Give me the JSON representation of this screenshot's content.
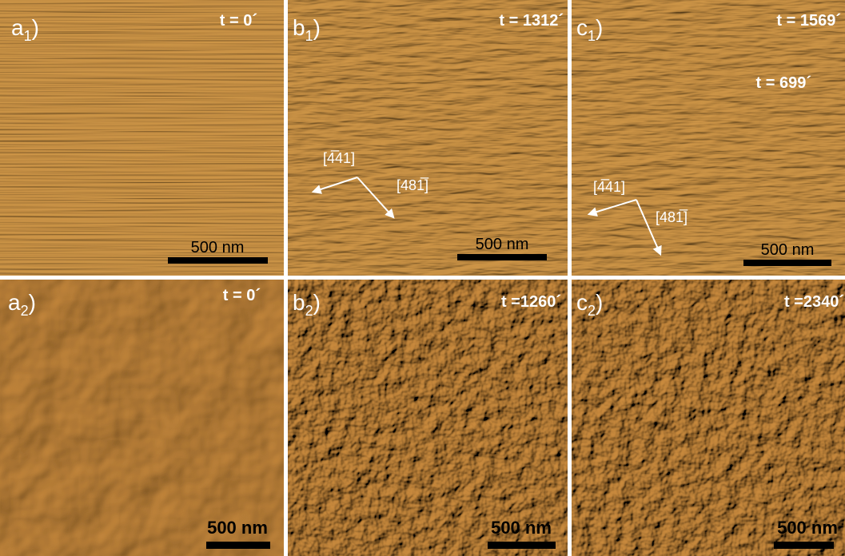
{
  "panels": [
    {
      "label": {
        "letter": "a",
        "subscript": "1",
        "close": ")"
      },
      "time": "t = 0´",
      "scale_bar": "500 nm"
    },
    {
      "label": {
        "letter": "b",
        "subscript": "1",
        "close": ")"
      },
      "time": "t = 1312´",
      "scale_bar": "500 nm",
      "directions": [
        "[4̅41]",
        "[481̅]"
      ]
    },
    {
      "label": {
        "letter": "c",
        "subscript": "1",
        "close": ")"
      },
      "time": "t = 1569´",
      "extra_time": "t = 699´",
      "scale_bar": "500 nm",
      "directions": [
        "[4̅41]",
        "[481̅]"
      ]
    },
    {
      "label": {
        "letter": "a",
        "subscript": "2",
        "close": ")"
      },
      "time": "t = 0´",
      "scale_bar": "500 nm"
    },
    {
      "label": {
        "letter": "b",
        "subscript": "2",
        "close": ")"
      },
      "time": "t =1260´",
      "scale_bar": "500 nm"
    },
    {
      "label": {
        "letter": "c",
        "subscript": "2",
        "close": ")"
      },
      "time": "t =2340´",
      "scale_bar": "500 nm"
    }
  ]
}
